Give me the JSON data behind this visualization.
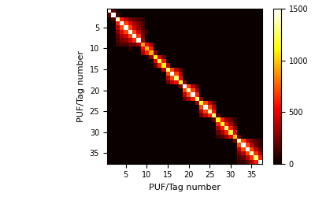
{
  "n": 37,
  "xlabel": "PUF/Tag number",
  "ylabel": "PUF/Tag number",
  "xticks": [
    5,
    10,
    15,
    20,
    25,
    30,
    35
  ],
  "yticks": [
    5,
    10,
    15,
    20,
    25,
    30,
    35
  ],
  "colorbar_ticks": [
    0,
    500,
    1000,
    1500
  ],
  "vmin": 0,
  "vmax": 1500,
  "cmap": "hot",
  "figsize": [
    4.0,
    2.5
  ],
  "dpi": 100,
  "matrix_data": [
    [
      1500,
      200,
      0,
      0,
      0,
      0,
      0,
      0,
      0,
      0,
      0,
      0,
      0,
      0,
      0,
      0,
      0,
      0,
      0,
      0,
      0,
      0,
      0,
      0,
      0,
      0,
      0,
      0,
      0,
      0,
      0,
      0,
      0,
      0,
      0,
      0,
      0
    ],
    [
      200,
      1500,
      150,
      0,
      0,
      0,
      0,
      0,
      0,
      0,
      0,
      0,
      0,
      0,
      0,
      0,
      0,
      0,
      0,
      0,
      0,
      0,
      0,
      0,
      0,
      0,
      0,
      0,
      0,
      0,
      0,
      0,
      0,
      0,
      0,
      0,
      0
    ],
    [
      0,
      150,
      1400,
      600,
      400,
      250,
      200,
      150,
      100,
      0,
      0,
      0,
      0,
      0,
      0,
      0,
      0,
      0,
      0,
      0,
      0,
      0,
      0,
      0,
      0,
      0,
      0,
      0,
      0,
      0,
      0,
      0,
      0,
      0,
      0,
      0,
      0
    ],
    [
      0,
      0,
      600,
      1500,
      700,
      500,
      350,
      250,
      150,
      0,
      0,
      0,
      0,
      0,
      0,
      0,
      0,
      0,
      0,
      0,
      0,
      0,
      0,
      0,
      0,
      0,
      0,
      0,
      0,
      0,
      0,
      0,
      0,
      0,
      0,
      0,
      0
    ],
    [
      0,
      0,
      400,
      700,
      1500,
      700,
      450,
      300,
      150,
      0,
      0,
      0,
      0,
      0,
      0,
      0,
      0,
      0,
      0,
      0,
      0,
      0,
      0,
      0,
      0,
      0,
      0,
      0,
      0,
      0,
      0,
      0,
      0,
      0,
      0,
      0,
      0
    ],
    [
      0,
      0,
      250,
      500,
      700,
      1500,
      700,
      450,
      200,
      100,
      0,
      0,
      0,
      0,
      0,
      0,
      0,
      0,
      0,
      0,
      0,
      0,
      0,
      0,
      0,
      0,
      0,
      0,
      0,
      0,
      0,
      0,
      0,
      0,
      0,
      0,
      0
    ],
    [
      0,
      0,
      200,
      350,
      450,
      700,
      1500,
      650,
      250,
      0,
      0,
      0,
      0,
      0,
      0,
      0,
      0,
      0,
      0,
      0,
      0,
      0,
      0,
      0,
      0,
      0,
      0,
      0,
      0,
      0,
      0,
      0,
      0,
      0,
      0,
      0,
      0
    ],
    [
      0,
      0,
      150,
      250,
      300,
      450,
      650,
      1500,
      350,
      0,
      0,
      0,
      0,
      0,
      0,
      0,
      0,
      0,
      0,
      0,
      0,
      0,
      0,
      0,
      0,
      0,
      0,
      0,
      0,
      0,
      0,
      0,
      0,
      0,
      0,
      0,
      0
    ],
    [
      0,
      0,
      100,
      150,
      150,
      200,
      250,
      350,
      900,
      550,
      350,
      0,
      0,
      0,
      0,
      0,
      0,
      0,
      0,
      0,
      0,
      0,
      0,
      0,
      0,
      0,
      0,
      0,
      0,
      0,
      0,
      0,
      0,
      0,
      0,
      0,
      0
    ],
    [
      0,
      0,
      0,
      0,
      0,
      100,
      0,
      0,
      550,
      1000,
      600,
      0,
      0,
      0,
      0,
      0,
      0,
      0,
      0,
      0,
      0,
      0,
      0,
      0,
      0,
      0,
      0,
      0,
      0,
      0,
      0,
      0,
      0,
      0,
      0,
      0,
      0
    ],
    [
      0,
      0,
      0,
      0,
      0,
      0,
      0,
      0,
      350,
      600,
      950,
      300,
      0,
      0,
      0,
      0,
      0,
      0,
      0,
      0,
      0,
      0,
      0,
      0,
      0,
      0,
      0,
      0,
      0,
      0,
      0,
      0,
      0,
      0,
      0,
      0,
      0
    ],
    [
      0,
      0,
      0,
      0,
      0,
      0,
      0,
      0,
      0,
      0,
      300,
      1100,
      500,
      200,
      0,
      0,
      0,
      0,
      0,
      0,
      0,
      0,
      0,
      0,
      0,
      0,
      0,
      0,
      0,
      0,
      0,
      0,
      0,
      0,
      0,
      0,
      0
    ],
    [
      0,
      0,
      0,
      0,
      0,
      0,
      0,
      0,
      0,
      0,
      0,
      500,
      1200,
      600,
      0,
      0,
      0,
      0,
      0,
      0,
      0,
      0,
      0,
      0,
      0,
      0,
      0,
      0,
      0,
      0,
      0,
      0,
      0,
      0,
      0,
      0,
      0
    ],
    [
      0,
      0,
      0,
      0,
      0,
      0,
      0,
      0,
      0,
      0,
      0,
      200,
      600,
      1100,
      400,
      0,
      0,
      0,
      0,
      0,
      0,
      0,
      0,
      0,
      0,
      0,
      0,
      0,
      0,
      0,
      0,
      0,
      0,
      0,
      0,
      0,
      0
    ],
    [
      0,
      0,
      0,
      0,
      0,
      0,
      0,
      0,
      0,
      0,
      0,
      0,
      0,
      400,
      1300,
      700,
      400,
      200,
      0,
      0,
      0,
      0,
      0,
      0,
      0,
      0,
      0,
      0,
      0,
      0,
      0,
      0,
      0,
      0,
      0,
      0,
      0
    ],
    [
      0,
      0,
      0,
      0,
      0,
      0,
      0,
      0,
      0,
      0,
      0,
      0,
      0,
      0,
      700,
      1500,
      700,
      400,
      0,
      0,
      0,
      0,
      0,
      0,
      0,
      0,
      0,
      0,
      0,
      0,
      0,
      0,
      0,
      0,
      0,
      0,
      0
    ],
    [
      0,
      0,
      0,
      0,
      0,
      0,
      0,
      0,
      0,
      0,
      0,
      0,
      0,
      0,
      400,
      700,
      1300,
      550,
      0,
      0,
      0,
      0,
      0,
      0,
      0,
      0,
      0,
      0,
      0,
      0,
      0,
      0,
      0,
      0,
      0,
      0,
      0
    ],
    [
      0,
      0,
      0,
      0,
      0,
      0,
      0,
      0,
      0,
      0,
      0,
      0,
      0,
      0,
      200,
      400,
      550,
      1200,
      300,
      0,
      0,
      0,
      0,
      0,
      0,
      0,
      0,
      0,
      0,
      0,
      0,
      0,
      0,
      0,
      0,
      0,
      0
    ],
    [
      0,
      0,
      0,
      0,
      0,
      0,
      0,
      0,
      0,
      0,
      0,
      0,
      0,
      0,
      0,
      0,
      0,
      300,
      1500,
      700,
      400,
      200,
      0,
      0,
      0,
      0,
      0,
      0,
      0,
      0,
      0,
      0,
      0,
      0,
      0,
      0,
      0
    ],
    [
      0,
      0,
      0,
      0,
      0,
      0,
      0,
      0,
      0,
      0,
      0,
      0,
      0,
      0,
      0,
      0,
      0,
      0,
      700,
      1400,
      700,
      350,
      0,
      0,
      0,
      0,
      0,
      0,
      0,
      0,
      0,
      0,
      0,
      0,
      0,
      0,
      0
    ],
    [
      0,
      0,
      0,
      0,
      0,
      0,
      0,
      0,
      0,
      0,
      0,
      0,
      0,
      0,
      0,
      0,
      0,
      0,
      400,
      700,
      1500,
      600,
      0,
      0,
      0,
      0,
      0,
      0,
      0,
      0,
      0,
      0,
      0,
      0,
      0,
      0,
      0
    ],
    [
      0,
      0,
      0,
      0,
      0,
      0,
      0,
      0,
      0,
      0,
      0,
      0,
      0,
      0,
      0,
      0,
      0,
      0,
      200,
      350,
      600,
      1300,
      300,
      0,
      0,
      0,
      0,
      0,
      0,
      0,
      0,
      0,
      0,
      0,
      0,
      0,
      0
    ],
    [
      0,
      0,
      0,
      0,
      0,
      0,
      0,
      0,
      0,
      0,
      0,
      0,
      0,
      0,
      0,
      0,
      0,
      0,
      0,
      0,
      0,
      300,
      1200,
      700,
      400,
      200,
      0,
      0,
      0,
      0,
      0,
      0,
      0,
      0,
      0,
      0,
      0
    ],
    [
      0,
      0,
      0,
      0,
      0,
      0,
      0,
      0,
      0,
      0,
      0,
      0,
      0,
      0,
      0,
      0,
      0,
      0,
      0,
      0,
      0,
      0,
      700,
      1500,
      700,
      400,
      0,
      0,
      0,
      0,
      0,
      0,
      0,
      0,
      0,
      0,
      0
    ],
    [
      0,
      0,
      0,
      0,
      0,
      0,
      0,
      0,
      0,
      0,
      0,
      0,
      0,
      0,
      0,
      0,
      0,
      0,
      0,
      0,
      0,
      0,
      400,
      700,
      1400,
      600,
      0,
      0,
      0,
      0,
      0,
      0,
      0,
      0,
      0,
      0,
      0
    ],
    [
      0,
      0,
      0,
      0,
      0,
      0,
      0,
      0,
      0,
      0,
      0,
      0,
      0,
      0,
      0,
      0,
      0,
      0,
      0,
      0,
      0,
      0,
      200,
      400,
      600,
      1300,
      200,
      0,
      0,
      0,
      0,
      0,
      0,
      0,
      0,
      0,
      0
    ],
    [
      0,
      0,
      0,
      0,
      0,
      0,
      0,
      0,
      0,
      0,
      0,
      0,
      0,
      0,
      0,
      0,
      0,
      0,
      0,
      0,
      0,
      0,
      0,
      0,
      0,
      200,
      1100,
      600,
      350,
      200,
      100,
      0,
      0,
      0,
      0,
      0,
      0
    ],
    [
      0,
      0,
      0,
      0,
      0,
      0,
      0,
      0,
      0,
      0,
      0,
      0,
      0,
      0,
      0,
      0,
      0,
      0,
      0,
      0,
      0,
      0,
      0,
      0,
      0,
      0,
      600,
      1200,
      600,
      350,
      150,
      0,
      0,
      0,
      0,
      0,
      0
    ],
    [
      0,
      0,
      0,
      0,
      0,
      0,
      0,
      0,
      0,
      0,
      0,
      0,
      0,
      0,
      0,
      0,
      0,
      0,
      0,
      0,
      0,
      0,
      0,
      0,
      0,
      0,
      350,
      600,
      1300,
      600,
      300,
      0,
      0,
      0,
      0,
      0,
      0
    ],
    [
      0,
      0,
      0,
      0,
      0,
      0,
      0,
      0,
      0,
      0,
      0,
      0,
      0,
      0,
      0,
      0,
      0,
      0,
      0,
      0,
      0,
      0,
      0,
      0,
      0,
      0,
      200,
      350,
      600,
      1200,
      500,
      0,
      0,
      0,
      0,
      0,
      0
    ],
    [
      0,
      0,
      0,
      0,
      0,
      0,
      0,
      0,
      0,
      0,
      0,
      0,
      0,
      0,
      0,
      0,
      0,
      0,
      0,
      0,
      0,
      0,
      0,
      0,
      0,
      0,
      100,
      150,
      300,
      500,
      1000,
      250,
      0,
      0,
      0,
      0,
      0
    ],
    [
      0,
      0,
      0,
      0,
      0,
      0,
      0,
      0,
      0,
      0,
      0,
      0,
      0,
      0,
      0,
      0,
      0,
      0,
      0,
      0,
      0,
      0,
      0,
      0,
      0,
      0,
      0,
      0,
      0,
      0,
      250,
      1400,
      700,
      400,
      250,
      150,
      100
    ],
    [
      0,
      0,
      0,
      0,
      0,
      0,
      0,
      0,
      0,
      0,
      0,
      0,
      0,
      0,
      0,
      0,
      0,
      0,
      0,
      0,
      0,
      0,
      0,
      0,
      0,
      0,
      0,
      0,
      0,
      0,
      0,
      700,
      1500,
      700,
      400,
      200,
      100
    ],
    [
      0,
      0,
      0,
      0,
      0,
      0,
      0,
      0,
      0,
      0,
      0,
      0,
      0,
      0,
      0,
      0,
      0,
      0,
      0,
      0,
      0,
      0,
      0,
      0,
      0,
      0,
      0,
      0,
      0,
      0,
      0,
      400,
      700,
      1500,
      700,
      400,
      200
    ],
    [
      0,
      0,
      0,
      0,
      0,
      0,
      0,
      0,
      0,
      0,
      0,
      0,
      0,
      0,
      0,
      0,
      0,
      0,
      0,
      0,
      0,
      0,
      0,
      0,
      0,
      0,
      0,
      0,
      0,
      0,
      0,
      250,
      400,
      700,
      1400,
      650,
      350
    ],
    [
      0,
      0,
      0,
      0,
      0,
      0,
      0,
      0,
      0,
      0,
      0,
      0,
      0,
      0,
      0,
      0,
      0,
      0,
      0,
      0,
      0,
      0,
      0,
      0,
      0,
      0,
      0,
      0,
      0,
      0,
      0,
      150,
      200,
      400,
      650,
      1300,
      600
    ],
    [
      0,
      0,
      0,
      0,
      0,
      0,
      0,
      0,
      0,
      0,
      0,
      0,
      0,
      0,
      0,
      0,
      0,
      0,
      0,
      0,
      0,
      0,
      0,
      0,
      0,
      0,
      0,
      0,
      0,
      0,
      0,
      100,
      100,
      200,
      350,
      600,
      1500
    ]
  ]
}
